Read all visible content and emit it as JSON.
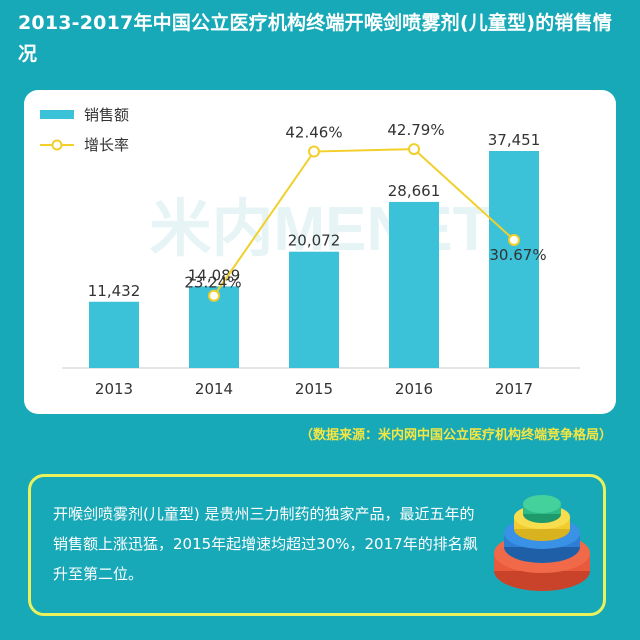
{
  "title": "2013-2017年中国公立医疗机构终端开喉剑喷雾剂(儿童型)的销售情况",
  "source": "（数据来源：米内网中国公立医疗机构终端竞争格局）",
  "watermark": "米内MENET",
  "note": "开喉剑喷雾剂(儿童型) 是贵州三力制药的独家产品，最近五年的销售额上涨迅猛，2015年起增速均超过30%，2017年的排名飙升至第二位。",
  "decoration_icon": "stacked-discs-icon",
  "colors": {
    "background": "#18a9b8",
    "bar": "#3cc2d8",
    "line": "#f2cf2a",
    "title_text": "#ffffff",
    "source_text": "#f5e642",
    "note_border": "#e9f25c"
  },
  "chart_data": {
    "type": "bar",
    "categories": [
      "2013",
      "2014",
      "2015",
      "2016",
      "2017"
    ],
    "series": [
      {
        "name": "销售额",
        "type": "bar",
        "values": [
          11432,
          14089,
          20072,
          28661,
          37451
        ],
        "labels": [
          "11,432",
          "14,089",
          "20,072",
          "28,661",
          "37,451"
        ]
      },
      {
        "name": "增长率",
        "type": "line",
        "values": [
          null,
          23.24,
          42.46,
          42.79,
          30.67
        ],
        "labels": [
          "",
          "23.24%",
          "42.46%",
          "42.79%",
          "30.67%"
        ]
      }
    ],
    "legend_position": "top-left",
    "grid": false
  }
}
